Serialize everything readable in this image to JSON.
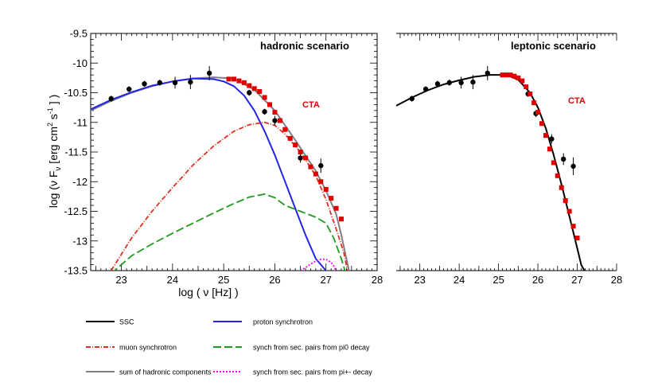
{
  "figure": {
    "y_axis_label_text": "log (ν F",
    "y_axis_label_sub": "ν",
    "y_axis_label_units": " [erg cm",
    "y_axis_label_sup1": "2",
    "y_axis_label_s": " s",
    "y_axis_label_sup2": "-1",
    "y_axis_label_end": " ] )",
    "x_axis_label": "log ( ν [Hz] )"
  },
  "legend": {
    "items": [
      {
        "label": "SSC",
        "color": "#000000",
        "style": "solid"
      },
      {
        "label": "proton synchrotron",
        "color": "#2424e6",
        "style": "solid"
      },
      {
        "label": "muon synchrotron",
        "color": "#e03020",
        "style": "dashdot"
      },
      {
        "label": "synch from sec. pairs from pi0 decay",
        "color": "#1f9a1f",
        "style": "longdash"
      },
      {
        "label": "sum of hadronic components",
        "color": "#808080",
        "style": "solid"
      },
      {
        "label": "synch from sec. pairs from pi+- decay",
        "color": "#ff00ff",
        "style": "dotted"
      }
    ]
  },
  "chart_data": [
    {
      "type": "line",
      "title": "hadronic scenario",
      "annotation": "CTA",
      "xlim": [
        22.4,
        28
      ],
      "ylim": [
        -13.5,
        -9.5
      ],
      "xticks": [
        "23",
        "24",
        "25",
        "26",
        "27",
        "28"
      ],
      "yticks": [
        "-9.5",
        "-10",
        "-10.5",
        "-11",
        "-11.5",
        "-12",
        "-12.5",
        "-13",
        "-13.5"
      ],
      "series": [
        {
          "name": "sum of hadronic components",
          "color": "#808080",
          "style": "solid",
          "x": [
            22.4,
            22.8,
            23.2,
            23.6,
            24.0,
            24.4,
            24.8,
            25.2,
            25.6,
            26.0,
            26.4,
            26.8,
            27.0,
            27.2,
            27.3,
            27.4,
            27.45
          ],
          "y": [
            -10.8,
            -10.64,
            -10.5,
            -10.39,
            -10.31,
            -10.26,
            -10.24,
            -10.26,
            -10.45,
            -10.8,
            -11.3,
            -11.82,
            -12.15,
            -12.55,
            -12.9,
            -13.3,
            -13.5
          ]
        },
        {
          "name": "proton synchrotron",
          "color": "#2424e6",
          "style": "solid",
          "x": [
            22.4,
            22.8,
            23.2,
            23.6,
            24.0,
            24.4,
            24.8,
            25.0,
            25.2,
            25.4,
            25.6,
            25.8,
            26.0,
            26.2,
            26.4,
            26.6,
            26.8,
            27.0,
            27.1
          ],
          "y": [
            -10.78,
            -10.62,
            -10.49,
            -10.38,
            -10.31,
            -10.26,
            -10.27,
            -10.31,
            -10.39,
            -10.55,
            -10.8,
            -11.15,
            -11.55,
            -12.0,
            -12.45,
            -12.9,
            -13.3,
            -13.5,
            -13.6
          ]
        },
        {
          "name": "muon synchrotron",
          "color": "#e03020",
          "style": "dashdot",
          "x": [
            22.8,
            23.2,
            23.6,
            24.0,
            24.4,
            24.8,
            25.2,
            25.5,
            25.8,
            26.0,
            26.2,
            26.5,
            26.8,
            27.0,
            27.2,
            27.35,
            27.42
          ],
          "y": [
            -13.5,
            -12.95,
            -12.5,
            -12.1,
            -11.72,
            -11.4,
            -11.15,
            -11.04,
            -11.0,
            -11.05,
            -11.2,
            -11.5,
            -11.9,
            -12.3,
            -12.8,
            -13.2,
            -13.5
          ]
        },
        {
          "name": "synch from sec. pairs from pi0 decay",
          "color": "#1f9a1f",
          "style": "longdash",
          "x": [
            22.8,
            23.2,
            23.6,
            24.0,
            24.4,
            24.8,
            25.2,
            25.5,
            25.8,
            26.0,
            26.2,
            26.5,
            26.8,
            27.0,
            27.15,
            27.3,
            27.37
          ],
          "y": [
            -13.55,
            -13.25,
            -13.05,
            -12.87,
            -12.7,
            -12.53,
            -12.37,
            -12.26,
            -12.21,
            -12.27,
            -12.4,
            -12.5,
            -12.6,
            -12.7,
            -12.95,
            -13.3,
            -13.5
          ]
        },
        {
          "name": "synch from sec. pairs from pi+- decay",
          "color": "#ff00ff",
          "style": "dotted",
          "x": [
            26.5,
            26.6,
            26.7,
            26.8,
            26.9,
            27.0,
            27.1,
            27.15,
            27.2
          ],
          "y": [
            -13.5,
            -13.45,
            -13.39,
            -13.34,
            -13.31,
            -13.31,
            -13.36,
            -13.42,
            -13.5
          ]
        }
      ],
      "points": [
        {
          "name": "measured",
          "color": "#000000",
          "marker": "circle",
          "x": [
            22.8,
            23.15,
            23.45,
            23.75,
            24.05,
            24.35,
            24.72,
            25.5,
            25.8,
            26.0,
            26.5,
            26.9
          ],
          "y": [
            -10.6,
            -10.44,
            -10.35,
            -10.33,
            -10.33,
            -10.32,
            -10.17,
            -10.5,
            -10.82,
            -10.97,
            -11.6,
            -11.73
          ],
          "err": [
            0.05,
            0.05,
            0.05,
            0.05,
            0.1,
            0.12,
            0.12,
            0.05,
            0.05,
            0.08,
            0.08,
            0.12
          ]
        },
        {
          "name": "CTA",
          "color": "#e00000",
          "marker": "square",
          "x": [
            25.1,
            25.2,
            25.3,
            25.4,
            25.5,
            25.6,
            25.7,
            25.8,
            25.9,
            26.0,
            26.1,
            26.2,
            26.3,
            26.4,
            26.5,
            26.6,
            26.7,
            26.8,
            26.9,
            27.0,
            27.1,
            27.2,
            27.3
          ],
          "y": [
            -10.27,
            -10.27,
            -10.3,
            -10.33,
            -10.38,
            -10.43,
            -10.48,
            -10.58,
            -10.7,
            -10.83,
            -10.97,
            -11.12,
            -11.27,
            -11.38,
            -11.5,
            -11.6,
            -11.75,
            -11.87,
            -12.0,
            -12.13,
            -12.28,
            -12.45,
            -12.63
          ]
        }
      ]
    },
    {
      "type": "line",
      "title": "leptonic scenario",
      "annotation": "CTA",
      "xlim": [
        22.4,
        28
      ],
      "ylim": [
        -13.5,
        -9.5
      ],
      "xticks": [
        "23",
        "24",
        "25",
        "26",
        "27",
        "28"
      ],
      "series": [
        {
          "name": "SSC",
          "color": "#000000",
          "style": "solid",
          "x": [
            22.4,
            22.8,
            23.2,
            23.6,
            24.0,
            24.4,
            24.8,
            25.2,
            25.5,
            25.8,
            26.0,
            26.2,
            26.4,
            26.6,
            26.8,
            27.0,
            27.1,
            27.18
          ],
          "y": [
            -10.72,
            -10.58,
            -10.46,
            -10.36,
            -10.29,
            -10.23,
            -10.2,
            -10.2,
            -10.28,
            -10.5,
            -10.75,
            -11.1,
            -11.55,
            -12.05,
            -12.58,
            -13.12,
            -13.4,
            -13.5
          ]
        }
      ],
      "points": [
        {
          "name": "measured",
          "color": "#000000",
          "marker": "circle",
          "x": [
            22.8,
            23.15,
            23.45,
            23.75,
            24.05,
            24.35,
            24.72,
            25.75,
            25.95,
            26.35,
            26.65,
            26.9
          ],
          "y": [
            -10.6,
            -10.44,
            -10.35,
            -10.33,
            -10.33,
            -10.32,
            -10.17,
            -10.52,
            -10.85,
            -11.28,
            -11.62,
            -11.74
          ],
          "err": [
            0.05,
            0.05,
            0.05,
            0.05,
            0.1,
            0.12,
            0.12,
            0.05,
            0.06,
            0.08,
            0.1,
            0.15
          ]
        },
        {
          "name": "CTA",
          "color": "#e00000",
          "marker": "square",
          "x": [
            25.1,
            25.2,
            25.3,
            25.4,
            25.5,
            25.6,
            25.7,
            25.8,
            25.9,
            26.0,
            26.1,
            26.2,
            26.3,
            26.4,
            26.5,
            26.6,
            26.7,
            26.8,
            26.9,
            27.0
          ],
          "y": [
            -10.2,
            -10.2,
            -10.2,
            -10.22,
            -10.25,
            -10.3,
            -10.4,
            -10.52,
            -10.67,
            -10.83,
            -11.02,
            -11.22,
            -11.45,
            -11.68,
            -11.9,
            -12.1,
            -12.32,
            -12.5,
            -12.75,
            -12.95
          ]
        }
      ]
    }
  ]
}
